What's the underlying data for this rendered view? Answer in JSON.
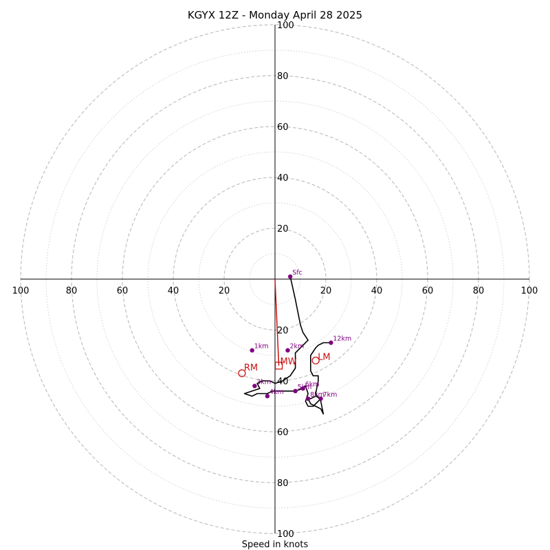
{
  "chart_data": {
    "type": "hodograph",
    "title": "KGYX 12Z - Monday April 28 2025",
    "xlabel": "Speed in knots",
    "ylabel": "",
    "xlim": [
      -100,
      100
    ],
    "ylim": [
      -100,
      100
    ],
    "tick_labels": {
      "x": [
        "100",
        "80",
        "60",
        "40",
        "20",
        "20",
        "40",
        "60",
        "80",
        "100"
      ],
      "y": [
        "100",
        "80",
        "60",
        "40",
        "20",
        "20",
        "40",
        "60",
        "80",
        "100"
      ]
    },
    "ring_speeds_dashed": [
      20,
      40,
      60,
      80,
      100
    ],
    "ring_speeds_dotted": [
      10,
      30,
      50,
      70,
      90
    ],
    "grid": true,
    "colors": {
      "trace": "#000000",
      "height_points": "#800080",
      "storm_motion": "#cc1111",
      "rings": "#bbbbbb"
    },
    "trace": [
      [
        6,
        1
      ],
      [
        8,
        -8
      ],
      [
        9,
        -13
      ],
      [
        10,
        -18
      ],
      [
        11,
        -21
      ],
      [
        13,
        -24
      ],
      [
        10,
        -27
      ],
      [
        8,
        -29
      ],
      [
        8,
        -33
      ],
      [
        8,
        -35
      ],
      [
        6,
        -38
      ],
      [
        3,
        -40
      ],
      [
        0,
        -41
      ],
      [
        -2,
        -40
      ],
      [
        -5,
        -40
      ],
      [
        -7,
        -41
      ],
      [
        -6,
        -43
      ],
      [
        -9,
        -44
      ],
      [
        -12,
        -45
      ],
      [
        -9,
        -46
      ],
      [
        -7,
        -45
      ],
      [
        -5,
        -45
      ],
      [
        -3,
        -45
      ],
      [
        -1,
        -44
      ],
      [
        3,
        -44
      ],
      [
        8,
        -44
      ],
      [
        11,
        -43
      ],
      [
        12,
        -42
      ],
      [
        13,
        -45
      ],
      [
        12,
        -48
      ],
      [
        13,
        -50
      ],
      [
        15,
        -50
      ],
      [
        18,
        -47
      ],
      [
        16,
        -46
      ],
      [
        14,
        -47
      ],
      [
        13,
        -47
      ],
      [
        14,
        -49
      ],
      [
        16,
        -50
      ],
      [
        18,
        -51
      ],
      [
        19,
        -53
      ],
      [
        18,
        -48
      ],
      [
        16,
        -45
      ],
      [
        17,
        -40
      ],
      [
        17,
        -38
      ],
      [
        15,
        -38
      ],
      [
        14,
        -36
      ],
      [
        14,
        -32
      ],
      [
        14,
        -30
      ],
      [
        16,
        -27
      ],
      [
        17,
        -26
      ],
      [
        19,
        -25
      ],
      [
        22,
        -25
      ]
    ],
    "height_points": [
      {
        "label": "Sfc",
        "u": 6,
        "v": 1
      },
      {
        "label": "1km",
        "u": -9,
        "v": -28
      },
      {
        "label": "2km",
        "u": 5,
        "v": -28
      },
      {
        "label": "3km",
        "u": -8,
        "v": -42
      },
      {
        "label": "4km",
        "u": -3,
        "v": -46
      },
      {
        "label": "5km",
        "u": 8,
        "v": -44
      },
      {
        "label": "6km",
        "u": 11,
        "v": -43
      },
      {
        "label": "7km",
        "u": 18,
        "v": -47
      },
      {
        "label": "8km",
        "u": 13,
        "v": -47
      },
      {
        "label": "12km",
        "u": 22,
        "v": -25
      }
    ],
    "storm_motion": {
      "RM": {
        "label": "RM",
        "u": -13,
        "v": -37
      },
      "LM": {
        "label": "LM",
        "u": 16,
        "v": -32
      },
      "MW": {
        "label": "MW",
        "u": 1.5,
        "v": -34
      },
      "shear_vector": {
        "from": [
          0,
          0
        ],
        "to": [
          1.5,
          -34
        ]
      }
    }
  }
}
